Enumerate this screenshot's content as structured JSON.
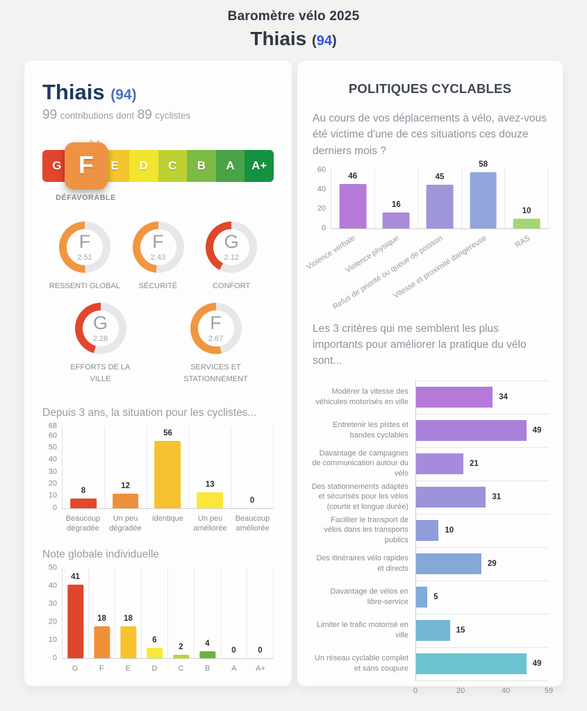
{
  "header": {
    "line1": "Baromètre vélo 2025",
    "city": "Thiais",
    "paren_open": "(",
    "dept": "94",
    "paren_close": ")"
  },
  "left_panel": {
    "city": "Thiais",
    "dept_wrapped": "(94)",
    "contributions": {
      "count_total": "99",
      "label_mid": "contributions dont",
      "count_cyclists": "89",
      "label_end": "cyclistes"
    },
    "scale": {
      "marker_value": "2.4",
      "selected": "F",
      "verdict": "DÉFAVORABLE",
      "grades": [
        {
          "letter": "G",
          "color": "#e2452b"
        },
        {
          "letter": "F",
          "color": "#ee9244"
        },
        {
          "letter": "E",
          "color": "#f5c52e"
        },
        {
          "letter": "D",
          "color": "#f3e42e"
        },
        {
          "letter": "C",
          "color": "#bdd134"
        },
        {
          "letter": "B",
          "color": "#7cba45"
        },
        {
          "letter": "A",
          "color": "#4aa247"
        },
        {
          "letter": "A+",
          "color": "#15923f"
        }
      ]
    },
    "gauges": {
      "max": 5,
      "track_color": "#e7e7e9",
      "items": [
        {
          "label": "RESSENTI GLOBAL",
          "grade": "F",
          "value": 2.51,
          "color": "#f0963f"
        },
        {
          "label": "SÉCURITÉ",
          "grade": "F",
          "value": 2.43,
          "color": "#f0963f"
        },
        {
          "label": "CONFORT",
          "grade": "G",
          "value": 2.12,
          "color": "#e0472c"
        },
        {
          "label": "EFFORTS DE LA VILLE",
          "grade": "G",
          "value": 2.28,
          "color": "#e0472c"
        },
        {
          "label": "SERVICES ET STATIONNEMENT",
          "grade": "F",
          "value": 2.67,
          "color": "#f0963f"
        }
      ]
    }
  },
  "right_panel": {
    "title": "POLITIQUES CYCLABLES",
    "question1": "Au cours de vos déplacements à vélo, avez-vous été victime d'une de ces situations ces douze derniers mois ?",
    "question2": "Les 3 critères qui me semblent les plus importants pour améliorer la pratique du vélo sont..."
  },
  "chart_data": [
    {
      "id": "situation_3ans",
      "type": "bar",
      "title": "Depuis 3 ans, la situation pour les cyclistes...",
      "categories": [
        "Beaucoup dégradée",
        "Un peu dégradée",
        "identique",
        "Un peu améliorée",
        "Beaucoup améliorée"
      ],
      "values": [
        8,
        12,
        56,
        13,
        0
      ],
      "colors": [
        "#e0472c",
        "#ee8f3c",
        "#f6c130",
        "#f9e73c",
        "#f9e73c"
      ],
      "ylim": [
        0,
        68
      ],
      "yticks": [
        0,
        10,
        20,
        30,
        40,
        50,
        60,
        68
      ],
      "grid": "vertical-dividers",
      "legend": "none"
    },
    {
      "id": "note_globale",
      "type": "bar",
      "title": "Note globale individuelle",
      "categories": [
        "G",
        "F",
        "E",
        "D",
        "C",
        "B",
        "A",
        "A+"
      ],
      "values": [
        41,
        18,
        18,
        6,
        2,
        4,
        0,
        0
      ],
      "colors": [
        "#e0462c",
        "#ef9039",
        "#f6c32f",
        "#f8e83b",
        "#bdd32f",
        "#6cb23c",
        "#bdbdbd",
        "#bdbdbd"
      ],
      "ylim": [
        0,
        50
      ],
      "yticks": [
        0,
        10,
        20,
        30,
        40,
        50
      ],
      "grid": "vertical-dividers",
      "legend": "none"
    },
    {
      "id": "situations_velo",
      "type": "bar",
      "title": "",
      "categories": [
        "Violence verbale",
        "Violence physique",
        "Refus de priorité ou queue de poisson",
        "Vitesse et proximité dangereuse",
        "RAS"
      ],
      "values": [
        46,
        16,
        45,
        58,
        10
      ],
      "colors": [
        "#b57ad8",
        "#a98bda",
        "#9d97d9",
        "#92a6db",
        "#a5d672"
      ],
      "ylim": [
        0,
        63
      ],
      "yticks": [
        0,
        20,
        40,
        60
      ],
      "xlabels_rotated": true,
      "grid": "vertical-dividers",
      "legend": "none"
    },
    {
      "id": "criteres",
      "type": "bar_horizontal",
      "title": "",
      "categories": [
        "Modérer la vitesse des véhicules motorisés en ville",
        "Entretenir les pistes et bandes cyclables",
        "Davantage de campagnes de communication autour du vélo",
        "Des stationnements adaptés et sécurisés pour les vélos (courte et longue durée)",
        "Faciliter le transport de vélos dans les transports publics",
        "Des itinéraires vélo rapides et directs",
        "Davantage de vélos en libre-service",
        "Limiter le trafic motorisé en ville",
        "Un réseau cyclable complet et sans coupure"
      ],
      "values": [
        34,
        49,
        21,
        31,
        10,
        29,
        5,
        15,
        49
      ],
      "colors": [
        "#b57ad9",
        "#a981da",
        "#a58bdb",
        "#9b94da",
        "#8f9dd9",
        "#86a8d9",
        "#7fabd8",
        "#74b6d5",
        "#6ac3d1"
      ],
      "xlim": [
        0,
        59
      ],
      "xticks": [
        0,
        20,
        40,
        59
      ],
      "grid": "horizontal-dividers",
      "legend": "none"
    }
  ]
}
